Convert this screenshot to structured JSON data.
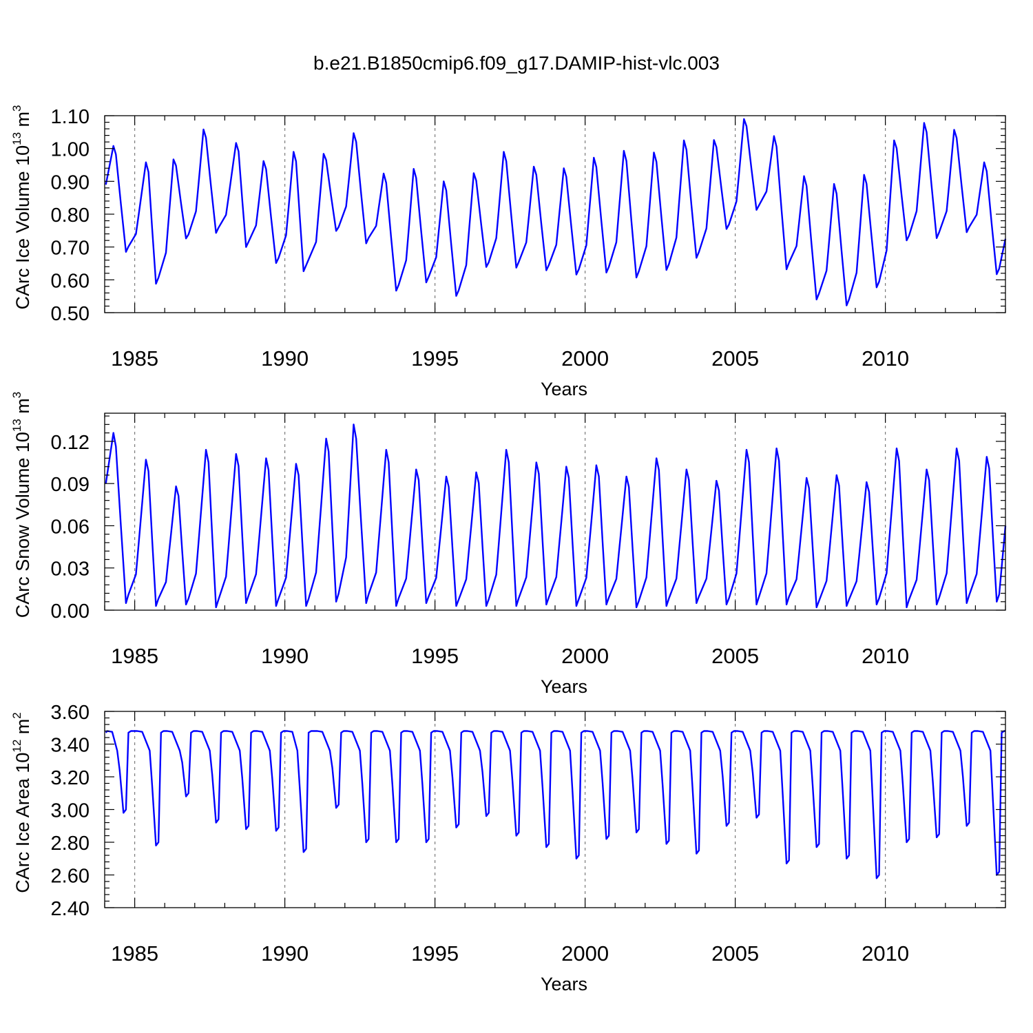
{
  "title": "b.e21.B1850cmip6.f09_g17.DAMIP-hist-vlc.003",
  "colors": {
    "line": "#0000ff",
    "axis": "#000000",
    "grid": "#7a7a7a"
  },
  "chart_data": [
    {
      "type": "line",
      "ylabel": "CArc Ice Volume 10",
      "ylabel_exp": "13",
      "ylabel_unit": " m",
      "ylabel_unit_exp": "3",
      "xlabel": "Years",
      "xlim": [
        1984.0,
        2014.0
      ],
      "ylim": [
        0.5,
        1.1
      ],
      "yticks": [
        0.5,
        0.6,
        0.7,
        0.8,
        0.9,
        1.0,
        1.1
      ],
      "ytick_labels": [
        "0.50",
        "0.60",
        "0.70",
        "0.80",
        "0.90",
        "1.00",
        "1.10"
      ],
      "xticks": [
        1985,
        1990,
        1995,
        2000,
        2005,
        2010
      ],
      "xtick_labels": [
        "1985",
        "1990",
        "1995",
        "2000",
        "2005",
        "2010"
      ],
      "series": [
        {
          "name": "CArc Ice Volume",
          "min_months": [
            9,
            9,
            9,
            9,
            9,
            9,
            8,
            9,
            9,
            9,
            9,
            9,
            9,
            9,
            9,
            9,
            9,
            9,
            9,
            9,
            9,
            9,
            9,
            9,
            9,
            9,
            9,
            9,
            9,
            9
          ],
          "max_months": [
            4,
            5,
            4,
            4,
            5,
            4,
            4,
            4,
            4,
            4,
            4,
            4,
            4,
            4,
            4,
            4,
            4,
            4,
            4,
            4,
            4,
            4,
            4,
            4,
            4,
            4,
            4,
            4,
            4,
            4
          ],
          "x": [
            1984.04,
            1984.88,
            1985.88,
            1986.88,
            1987.88,
            1988.88,
            1989.88,
            1990.88,
            1991.88,
            1992.88,
            1993.88,
            1994.88,
            1995.88,
            1996.88,
            1997.88,
            1998.88,
            1999.88,
            2000.88,
            2001.88,
            2002.88,
            2003.88,
            2004.88,
            2005.88,
            2006.88,
            2007.88,
            2008.88,
            2009.88,
            2010.88,
            2011.88,
            2012.88,
            2013.96
          ],
          "minima": [
            0.685,
            0.588,
            0.726,
            0.743,
            0.7,
            0.651,
            0.626,
            0.749,
            0.711,
            0.567,
            0.592,
            0.551,
            0.639,
            0.637,
            0.629,
            0.616,
            0.622,
            0.607,
            0.63,
            0.667,
            0.755,
            0.813,
            0.632,
            0.54,
            0.522,
            0.577,
            0.72,
            0.727,
            0.745,
            0.617
          ],
          "maxima": [
            1.008,
            0.958,
            0.967,
            1.058,
            1.017,
            0.962,
            0.99,
            0.984,
            1.047,
            0.924,
            0.938,
            0.9,
            0.925,
            0.99,
            0.945,
            0.94,
            0.972,
            0.993,
            0.988,
            1.025,
            1.026,
            1.09,
            1.038,
            0.916,
            0.892,
            0.92,
            1.025,
            1.078,
            1.057,
            0.958
          ],
          "first": 0.89,
          "last": 0.725
        }
      ]
    },
    {
      "type": "line",
      "ylabel": "CArc Snow Volume 10",
      "ylabel_exp": "13",
      "ylabel_unit": " m",
      "ylabel_unit_exp": "3",
      "xlabel": "Years",
      "xlim": [
        1984.0,
        2014.0
      ],
      "ylim": [
        0.0,
        0.14
      ],
      "yticks": [
        0.0,
        0.03,
        0.06,
        0.09,
        0.12
      ],
      "ytick_labels": [
        "0.00",
        "0.03",
        "0.06",
        "0.09",
        "0.12"
      ],
      "xticks": [
        1985,
        1990,
        1995,
        2000,
        2005,
        2010
      ],
      "xtick_labels": [
        "1985",
        "1990",
        "1995",
        "2000",
        "2005",
        "2010"
      ],
      "series": [
        {
          "name": "CArc Snow Volume",
          "min_months": [
            9,
            9,
            9,
            9,
            9,
            9,
            9,
            9,
            9,
            9,
            9,
            9,
            9,
            9,
            9,
            9,
            9,
            9,
            9,
            9,
            9,
            9,
            9,
            9,
            9,
            9,
            9,
            9,
            9,
            9
          ],
          "max_months": [
            4,
            5,
            5,
            5,
            5,
            5,
            5,
            5,
            4,
            5,
            5,
            5,
            5,
            5,
            5,
            5,
            5,
            5,
            5,
            5,
            5,
            5,
            5,
            5,
            5,
            5,
            5,
            5,
            5,
            5
          ],
          "x": [
            1984.04,
            1984.88,
            1985.88,
            1986.88,
            1987.88,
            1988.88,
            1989.88,
            1990.88,
            1991.88,
            1992.88,
            1993.88,
            1994.88,
            1995.88,
            1996.88,
            1997.88,
            1998.88,
            1999.88,
            2000.88,
            2001.88,
            2002.88,
            2003.88,
            2004.88,
            2005.88,
            2006.88,
            2007.88,
            2008.88,
            2009.88,
            2010.88,
            2011.88,
            2012.88,
            2013.96
          ],
          "minima": [
            0.005,
            0.003,
            0.004,
            0.002,
            0.005,
            0.003,
            0.003,
            0.006,
            0.005,
            0.003,
            0.005,
            0.003,
            0.003,
            0.003,
            0.004,
            0.003,
            0.004,
            0.002,
            0.003,
            0.005,
            0.004,
            0.004,
            0.004,
            0.002,
            0.003,
            0.004,
            0.002,
            0.004,
            0.005,
            0.006
          ],
          "maxima": [
            0.126,
            0.107,
            0.088,
            0.114,
            0.111,
            0.108,
            0.104,
            0.122,
            0.132,
            0.114,
            0.1,
            0.095,
            0.098,
            0.114,
            0.105,
            0.102,
            0.103,
            0.095,
            0.108,
            0.1,
            0.092,
            0.114,
            0.115,
            0.094,
            0.096,
            0.091,
            0.115,
            0.1,
            0.115,
            0.109
          ],
          "first": 0.09,
          "last": 0.06
        }
      ]
    },
    {
      "type": "line",
      "ylabel": "CArc Ice Area 10",
      "ylabel_exp": "12",
      "ylabel_unit": " m",
      "ylabel_unit_exp": "2",
      "xlabel": "Years",
      "xlim": [
        1984.0,
        2014.0
      ],
      "ylim": [
        2.4,
        3.6
      ],
      "yticks": [
        2.4,
        2.6,
        2.8,
        3.0,
        3.2,
        3.4,
        3.6
      ],
      "ytick_labels": [
        "2.40",
        "2.60",
        "2.80",
        "3.00",
        "3.20",
        "3.40",
        "3.60"
      ],
      "xticks": [
        1985,
        1990,
        1995,
        2000,
        2005,
        2010
      ],
      "xtick_labels": [
        "1985",
        "1990",
        "1995",
        "2000",
        "2005",
        "2010"
      ],
      "series": [
        {
          "name": "CArc Ice Area",
          "plateau": 3.48,
          "min_months": [
            8,
            9,
            9,
            9,
            9,
            9,
            8,
            9,
            9,
            9,
            9,
            9,
            9,
            9,
            9,
            9,
            9,
            9,
            9,
            9,
            9,
            9,
            9,
            9,
            9,
            9,
            9,
            9,
            9,
            9
          ],
          "x": [
            1984.04,
            1984.8,
            1985.88,
            1986.72,
            1987.88,
            1988.88,
            1989.88,
            1990.72,
            1991.88,
            1992.72,
            1993.72,
            1994.72,
            1995.72,
            1996.72,
            1997.72,
            1998.72,
            1999.72,
            2000.72,
            2001.72,
            2002.72,
            2003.72,
            2004.72,
            2005.72,
            2006.72,
            2007.72,
            2008.72,
            2009.72,
            2010.72,
            2011.72,
            2012.72,
            2013.96
          ],
          "minima": [
            2.98,
            2.78,
            3.08,
            2.92,
            2.88,
            2.87,
            2.74,
            3.01,
            2.8,
            2.8,
            2.8,
            2.89,
            2.96,
            2.84,
            2.77,
            2.7,
            2.82,
            2.86,
            2.79,
            2.73,
            2.9,
            2.95,
            2.67,
            2.77,
            2.7,
            2.58,
            2.8,
            2.83,
            2.9,
            2.6
          ],
          "first": 3.47,
          "last": 3.48
        }
      ]
    }
  ]
}
